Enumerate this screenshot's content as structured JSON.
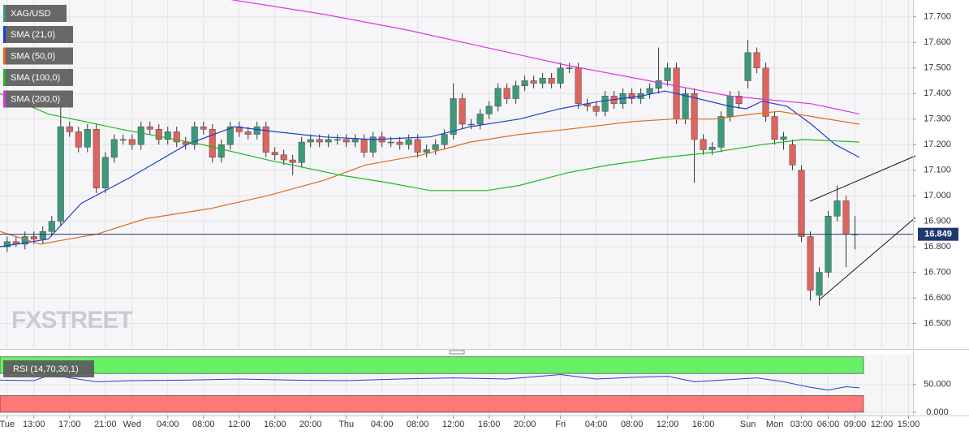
{
  "chart_data": {
    "type": "candlestick",
    "symbol": "XAG/USD",
    "watermark": "FXSTREET",
    "grid": true,
    "up_color": "#3b9a7c",
    "down_color": "#e0635d",
    "xlim": [
      -0.8,
      101.5
    ],
    "xticks": [
      {
        "value": 0,
        "label": "Tue"
      },
      {
        "value": 3,
        "label": "13:00"
      },
      {
        "value": 7,
        "label": "17:00"
      },
      {
        "value": 11,
        "label": "21:00"
      },
      {
        "value": 14,
        "label": "Wed"
      },
      {
        "value": 18,
        "label": "04:00"
      },
      {
        "value": 22,
        "label": "08:00"
      },
      {
        "value": 26,
        "label": "12:00"
      },
      {
        "value": 30,
        "label": "16:00"
      },
      {
        "value": 34,
        "label": "20:00"
      },
      {
        "value": 38,
        "label": "Thu"
      },
      {
        "value": 42,
        "label": "04:00"
      },
      {
        "value": 46,
        "label": "08:00"
      },
      {
        "value": 50,
        "label": "12:00"
      },
      {
        "value": 54,
        "label": "16:00"
      },
      {
        "value": 58,
        "label": "20:00"
      },
      {
        "value": 62,
        "label": "Fri"
      },
      {
        "value": 66,
        "label": "04:00"
      },
      {
        "value": 70,
        "label": "08:00"
      },
      {
        "value": 74,
        "label": "12:00"
      },
      {
        "value": 78,
        "label": "16:00"
      },
      {
        "value": 83,
        "label": "Sun"
      },
      {
        "value": 86,
        "label": "Mon"
      },
      {
        "value": 89,
        "label": "03:00"
      },
      {
        "value": 92,
        "label": "06:00"
      },
      {
        "value": 95,
        "label": "09:00"
      },
      {
        "value": 98,
        "label": "12:00"
      },
      {
        "value": 101,
        "label": "15:00"
      }
    ],
    "ylim": [
      16.4,
      17.766
    ],
    "yticks": [
      {
        "value": 16.5,
        "label": "16.500"
      },
      {
        "value": 16.6,
        "label": "16.600"
      },
      {
        "value": 16.7,
        "label": "16.700"
      },
      {
        "value": 16.8,
        "label": "16.800"
      },
      {
        "value": 16.9,
        "label": "16.900"
      },
      {
        "value": 17.0,
        "label": "17.000"
      },
      {
        "value": 17.1,
        "label": "17.100"
      },
      {
        "value": 17.2,
        "label": "17.200"
      },
      {
        "value": 17.3,
        "label": "17.300"
      },
      {
        "value": 17.4,
        "label": "17.400"
      },
      {
        "value": 17.5,
        "label": "17.500"
      },
      {
        "value": 17.6,
        "label": "17.600"
      },
      {
        "value": 17.7,
        "label": "17.700"
      }
    ],
    "x": [
      0,
      1,
      2,
      3,
      4,
      5,
      6,
      7,
      8,
      9,
      10,
      11,
      12,
      13,
      14,
      15,
      16,
      17,
      18,
      19,
      20,
      21,
      22,
      23,
      24,
      25,
      26,
      27,
      28,
      29,
      30,
      31,
      32,
      33,
      34,
      35,
      36,
      37,
      38,
      39,
      40,
      41,
      42,
      43,
      44,
      45,
      46,
      47,
      48,
      49,
      50,
      51,
      52,
      53,
      54,
      55,
      56,
      57,
      58,
      59,
      60,
      61,
      62,
      63,
      64,
      65,
      66,
      67,
      68,
      69,
      70,
      71,
      72,
      73,
      74,
      75,
      76,
      77,
      78,
      79,
      80,
      81,
      82,
      83,
      84,
      85,
      86,
      87,
      88,
      89,
      90,
      91,
      92,
      93,
      94,
      95
    ],
    "open": [
      16.8,
      16.82,
      16.81,
      16.84,
      16.83,
      16.86,
      16.9,
      17.27,
      17.25,
      17.19,
      17.26,
      17.03,
      17.15,
      17.22,
      17.22,
      17.2,
      17.27,
      17.26,
      17.22,
      17.25,
      17.21,
      17.2,
      17.27,
      17.26,
      17.15,
      17.2,
      17.27,
      17.25,
      17.24,
      17.27,
      17.17,
      17.16,
      17.14,
      17.13,
      17.21,
      17.22,
      17.21,
      17.22,
      17.22,
      17.21,
      17.22,
      17.17,
      17.23,
      17.21,
      17.21,
      17.2,
      17.22,
      17.17,
      17.18,
      17.2,
      17.24,
      17.38,
      17.28,
      17.28,
      17.32,
      17.35,
      17.42,
      17.38,
      17.43,
      17.45,
      17.44,
      17.46,
      17.44,
      17.5,
      17.5,
      17.36,
      17.35,
      17.33,
      17.39,
      17.36,
      17.4,
      17.38,
      17.4,
      17.42,
      17.45,
      17.5,
      17.3,
      17.4,
      17.22,
      17.18,
      17.19,
      17.31,
      17.39,
      17.45,
      17.56,
      17.5,
      17.31,
      17.22,
      17.2,
      17.1,
      16.84,
      16.61,
      16.7,
      16.92,
      16.98,
      16.85
    ],
    "high": [
      16.84,
      16.84,
      16.86,
      16.86,
      16.88,
      16.92,
      17.35,
      17.29,
      17.27,
      17.28,
      17.28,
      17.17,
      17.24,
      17.24,
      17.24,
      17.29,
      17.29,
      17.28,
      17.27,
      17.27,
      17.23,
      17.29,
      17.29,
      17.28,
      17.22,
      17.29,
      17.29,
      17.27,
      17.29,
      17.29,
      17.19,
      17.18,
      17.16,
      17.23,
      17.24,
      17.24,
      17.24,
      17.24,
      17.24,
      17.24,
      17.24,
      17.25,
      17.25,
      17.23,
      17.23,
      17.24,
      17.24,
      17.2,
      17.22,
      17.26,
      17.44,
      17.4,
      17.3,
      17.34,
      17.37,
      17.44,
      17.44,
      17.45,
      17.47,
      17.47,
      17.48,
      17.48,
      17.52,
      17.52,
      17.52,
      17.38,
      17.37,
      17.41,
      17.41,
      17.42,
      17.42,
      17.42,
      17.44,
      17.58,
      17.52,
      17.52,
      17.42,
      17.42,
      17.24,
      17.21,
      17.33,
      17.41,
      17.41,
      17.61,
      17.58,
      17.52,
      17.33,
      17.25,
      17.22,
      17.12,
      16.86,
      16.72,
      16.94,
      17.04,
      17.0,
      16.92
    ],
    "low": [
      16.78,
      16.8,
      16.79,
      16.81,
      16.81,
      16.84,
      16.88,
      17.23,
      17.17,
      17.17,
      17.01,
      17.01,
      17.13,
      17.2,
      17.18,
      17.18,
      17.24,
      17.2,
      17.2,
      17.19,
      17.18,
      17.18,
      17.24,
      17.13,
      17.13,
      17.18,
      17.23,
      17.22,
      17.22,
      17.15,
      17.14,
      17.12,
      17.08,
      17.11,
      17.19,
      17.19,
      17.19,
      17.2,
      17.19,
      17.19,
      17.15,
      17.15,
      17.19,
      17.19,
      17.18,
      17.18,
      17.15,
      17.15,
      17.16,
      17.18,
      17.22,
      17.26,
      17.26,
      17.26,
      17.3,
      17.33,
      17.36,
      17.36,
      17.41,
      17.42,
      17.42,
      17.42,
      17.42,
      17.48,
      17.34,
      17.33,
      17.31,
      17.31,
      17.34,
      17.34,
      17.36,
      17.36,
      17.38,
      17.4,
      17.43,
      17.28,
      17.28,
      17.05,
      17.16,
      17.16,
      17.17,
      17.29,
      17.34,
      17.42,
      17.48,
      17.29,
      17.2,
      17.18,
      17.1,
      16.82,
      16.59,
      16.57,
      16.68,
      16.9,
      16.72,
      16.79
    ],
    "close": [
      16.82,
      16.81,
      16.84,
      16.83,
      16.86,
      16.9,
      17.27,
      17.25,
      17.19,
      17.26,
      17.03,
      17.15,
      17.22,
      17.22,
      17.2,
      17.27,
      17.26,
      17.22,
      17.25,
      17.21,
      17.2,
      17.27,
      17.26,
      17.15,
      17.2,
      17.27,
      17.25,
      17.24,
      17.27,
      17.17,
      17.16,
      17.14,
      17.13,
      17.21,
      17.22,
      17.21,
      17.22,
      17.22,
      17.21,
      17.22,
      17.17,
      17.23,
      17.21,
      17.21,
      17.2,
      17.22,
      17.17,
      17.18,
      17.2,
      17.24,
      17.38,
      17.28,
      17.28,
      17.32,
      17.35,
      17.42,
      17.38,
      17.43,
      17.45,
      17.44,
      17.46,
      17.44,
      17.5,
      17.5,
      17.36,
      17.35,
      17.33,
      17.39,
      17.36,
      17.4,
      17.38,
      17.4,
      17.42,
      17.45,
      17.5,
      17.3,
      17.4,
      17.22,
      17.18,
      17.19,
      17.31,
      17.39,
      17.36,
      17.56,
      17.5,
      17.31,
      17.22,
      17.23,
      17.12,
      16.84,
      16.63,
      16.7,
      16.92,
      16.98,
      16.85,
      16.85
    ],
    "last_price": {
      "value": 16.849,
      "label": "16.849"
    },
    "indicators": [
      {
        "name": "SMA (21,0)",
        "color": "#1f3fd0",
        "x": [
          -0.8,
          4.6,
          8.3,
          13.7,
          20.1,
          25.5,
          30.1,
          35.5,
          41,
          47.4,
          51.9,
          57.4,
          61.9,
          66.5,
          71,
          73.7,
          77.4,
          81,
          82.8,
          84.6,
          87.4,
          90.1,
          92.8,
          95.5
        ],
        "values": [
          16.8,
          16.83,
          16.97,
          17.07,
          17.2,
          17.27,
          17.25,
          17.23,
          17.22,
          17.23,
          17.27,
          17.3,
          17.34,
          17.37,
          17.39,
          17.41,
          17.38,
          17.35,
          17.34,
          17.37,
          17.35,
          17.28,
          17.2,
          17.15
        ]
      },
      {
        "name": "SMA (50,0)",
        "color": "#e06a1a",
        "x": [
          -0.8,
          3.7,
          10.1,
          15.5,
          22.8,
          29.2,
          35.5,
          40.1,
          46.5,
          51.9,
          57.4,
          62.8,
          70.1,
          74.6,
          79.2,
          83.7,
          86.5,
          90.1,
          95.5
        ],
        "values": [
          16.86,
          16.81,
          16.85,
          16.91,
          16.95,
          17.0,
          17.06,
          17.12,
          17.16,
          17.21,
          17.24,
          17.26,
          17.29,
          17.3,
          17.3,
          17.32,
          17.33,
          17.31,
          17.28
        ]
      },
      {
        "name": "SMA (100,0)",
        "color": "#1fb81f",
        "x": [
          -0.8,
          4.6,
          12.8,
          21.9,
          29.2,
          37.4,
          42.8,
          47.4,
          53.7,
          57.4,
          62.8,
          67.4,
          73.7,
          79.2,
          84.6,
          89.2,
          95.5
        ],
        "values": [
          17.4,
          17.32,
          17.26,
          17.2,
          17.14,
          17.08,
          17.05,
          17.02,
          17.02,
          17.04,
          17.09,
          17.12,
          17.15,
          17.17,
          17.2,
          17.22,
          17.21
        ]
      },
      {
        "name": "SMA (200,0)",
        "color": "#e033e0",
        "x": [
          24.6,
          35.5,
          44.6,
          53.7,
          62.8,
          71.9,
          81,
          90.1,
          95.5
        ],
        "values": [
          17.77,
          17.71,
          17.65,
          17.58,
          17.51,
          17.45,
          17.39,
          17.36,
          17.32
        ]
      }
    ],
    "rsi": {
      "name": "RSI (14,70,30,1)",
      "color": "#1f3fd0",
      "ylim": [
        -6,
        104
      ],
      "yticks": [
        {
          "value": 0,
          "label": "0.000"
        },
        {
          "value": 50,
          "label": "50.000"
        }
      ],
      "zones": [
        {
          "from": 70,
          "to": 100,
          "color": "#66f066"
        },
        {
          "from": 0,
          "to": 30,
          "color": "#ff7878"
        }
      ],
      "x": [
        -0.8,
        3,
        5,
        7,
        10,
        14,
        20,
        26,
        32,
        38,
        44,
        50,
        56,
        62,
        66,
        70,
        74,
        77,
        80,
        84,
        87,
        90,
        92,
        94,
        95.5
      ],
      "values": [
        58,
        57,
        68,
        62,
        55,
        57,
        58,
        60,
        58,
        57,
        60,
        62,
        60,
        68,
        60,
        63,
        65,
        55,
        58,
        62,
        55,
        45,
        40,
        46,
        44
      ]
    }
  }
}
